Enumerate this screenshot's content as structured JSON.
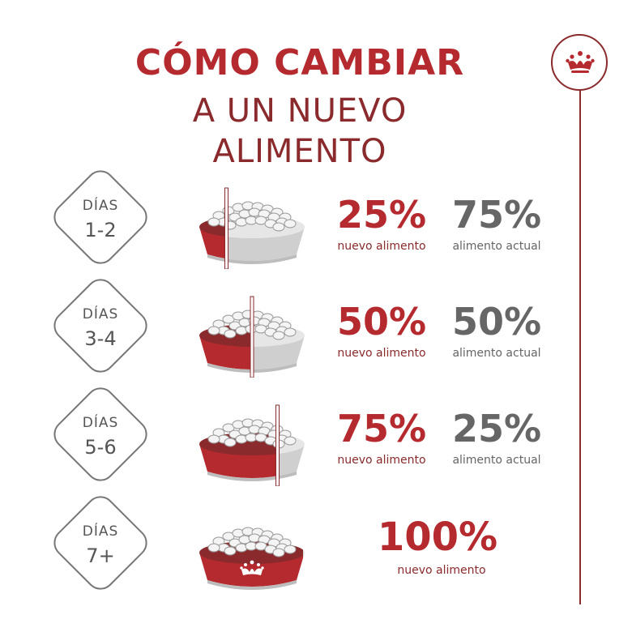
{
  "title": {
    "line1": "CÓMO CAMBIAR",
    "line2": "A UN NUEVO ALIMENTO"
  },
  "logo": {
    "icon": "crown-icon",
    "color": "#8a2a2c"
  },
  "colors": {
    "red": "#b52a2f",
    "dark_red": "#8a2a2c",
    "gray": "#666666"
  },
  "steps": [
    {
      "label": "DÍAS",
      "range": "1-2",
      "new_pct": "25%",
      "new_label": "nuevo alimento",
      "current_pct": "75%",
      "current_label": "alimento actual",
      "new_fraction": 0.25
    },
    {
      "label": "DÍAS",
      "range": "3-4",
      "new_pct": "50%",
      "new_label": "nuevo alimento",
      "current_pct": "50%",
      "current_label": "alimento actual",
      "new_fraction": 0.5
    },
    {
      "label": "DÍAS",
      "range": "5-6",
      "new_pct": "75%",
      "new_label": "nuevo alimento",
      "current_pct": "25%",
      "current_label": "alimento actual",
      "new_fraction": 0.75
    },
    {
      "label": "DÍAS",
      "range": "7+",
      "new_pct": "100%",
      "new_label": "nuevo alimento",
      "new_fraction": 1.0
    }
  ]
}
